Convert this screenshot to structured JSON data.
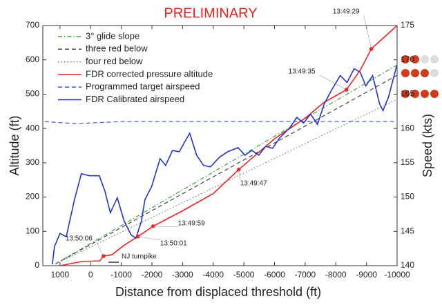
{
  "chart_data": {
    "type": "line",
    "title": "PRELIMINARY",
    "title_color": "#e8221b",
    "x_label": "Distance from displaced threshold (ft)",
    "y_label": "Altitude (ft)",
    "y2_label": "Speed (kts)",
    "xlim": [
      1560,
      -10000
    ],
    "xticks": [
      1000,
      0,
      -1000,
      -2000,
      -3000,
      -4000,
      -5000,
      -6000,
      -7000,
      -8000,
      -9000,
      -10000
    ],
    "ylim": [
      0,
      700
    ],
    "yticks": [
      0,
      100,
      200,
      300,
      400,
      500,
      600,
      700
    ],
    "y2lim": [
      140,
      175
    ],
    "y2ticks": [
      140,
      145,
      150,
      155,
      160,
      165,
      170,
      175
    ],
    "legend": "upper left",
    "series": [
      {
        "name": "3° glide slope",
        "color": "#3aa63a",
        "linestyle": "dashdot",
        "axis": "y",
        "x": [
          1150,
          -10000
        ],
        "values": [
          5,
          585
        ]
      },
      {
        "name": "three red below",
        "color": "#444444",
        "linestyle": "dash",
        "axis": "y",
        "x": [
          1150,
          -10000
        ],
        "values": [
          5,
          555
        ]
      },
      {
        "name": "four red below",
        "color": "#777777",
        "linestyle": "dot",
        "axis": "y",
        "x": [
          1150,
          -10000
        ],
        "values": [
          5,
          485
        ]
      },
      {
        "name": "FDR corrected pressure altitude",
        "color": "#ee2222",
        "linestyle": "solid",
        "axis": "y",
        "x": [
          1000,
          700,
          300,
          0,
          -300,
          -420,
          -700,
          -1100,
          -1545,
          -2040,
          -3000,
          -4000,
          -4833,
          -6000,
          -7000,
          -7600,
          -8347,
          -8800,
          -9160,
          -10000
        ],
        "values": [
          0,
          5,
          12,
          13,
          14,
          28,
          32,
          60,
          85,
          115,
          160,
          210,
          280,
          370,
          430,
          475,
          513,
          570,
          632,
          700
        ]
      },
      {
        "name": "Programmed target airspeed",
        "color": "#3355dd",
        "linestyle": "dash",
        "axis": "y2",
        "x": [
          1500,
          500,
          0,
          -1000,
          -10000
        ],
        "values": [
          161,
          160.7,
          160.8,
          161,
          161
        ]
      },
      {
        "name": "FDR Calibrated airspeed",
        "color": "#2233cc",
        "linestyle": "solid",
        "axis": "y2",
        "x": [
          1248,
          1180,
          1000,
          797,
          527,
          302,
          32,
          -284,
          -464,
          -644,
          -869,
          -1095,
          -1320,
          -1477,
          -1658,
          -1770,
          -1995,
          -2266,
          -2446,
          -2671,
          -2896,
          -3077,
          -3234,
          -3459,
          -3685,
          -3910,
          -4203,
          -4473,
          -4811,
          -5036,
          -5261,
          -5486,
          -5712,
          -5937,
          -6162,
          -6387,
          -6500,
          -6725,
          -6950,
          -7176,
          -7401,
          -7626,
          -7851,
          -8144,
          -8369,
          -8595,
          -8797,
          -8977,
          -9203,
          -9428,
          -9541,
          -9721,
          -9991
        ],
        "values": [
          140.2,
          142.8,
          144.7,
          144.2,
          149.6,
          153.4,
          153.1,
          153.1,
          150.9,
          147.7,
          149.9,
          146.5,
          144.5,
          144.0,
          146.5,
          149.6,
          151.6,
          155.6,
          154.6,
          156.8,
          156.6,
          158.1,
          159.3,
          156.1,
          154.6,
          154.4,
          155.8,
          156.6,
          157.2,
          156.1,
          156.8,
          156.1,
          157.4,
          157.1,
          158.6,
          159.6,
          160.1,
          161.6,
          160.8,
          162.1,
          160.6,
          163.6,
          165.5,
          167.7,
          166.7,
          168.7,
          168.2,
          166.2,
          167.7,
          163.6,
          162.6,
          164.6,
          169.2
        ]
      }
    ],
    "annotations": [
      {
        "text": "13:49:29",
        "x": -9160,
        "y": 632
      },
      {
        "text": "13:49:35",
        "x": -8347,
        "y": 513
      },
      {
        "text": "13:49:47",
        "x": -4833,
        "y": 280
      },
      {
        "text": "13:49:59",
        "x": -2040,
        "y": 115
      },
      {
        "text": "13:50:01",
        "x": -1545,
        "y": 85
      },
      {
        "text": "13:50:06",
        "x": -420,
        "y": 28
      }
    ],
    "notes": [
      "NJ turnpike"
    ]
  }
}
